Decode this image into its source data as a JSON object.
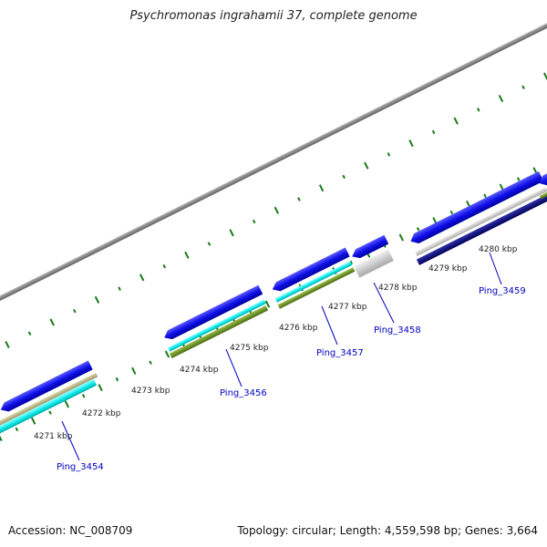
{
  "title": "Psychromonas ingrahamii 37, complete genome",
  "footer": {
    "accession": "Accession: NC_008709",
    "summary": "Topology: circular; Length: 4,559,598 bp; Genes: 3,664"
  },
  "ticks": [
    "4271 kbp",
    "4272 kbp",
    "4273 kbp",
    "4274 kbp",
    "4275 kbp",
    "4276 kbp",
    "4277 kbp",
    "4278 kbp",
    "4279 kbp",
    "4280 kbp"
  ],
  "genes": [
    "Ping_3454",
    "Ping_3456",
    "Ping_3457",
    "Ping_3458",
    "Ping_3459"
  ],
  "colors": {
    "backbone": "#808080",
    "gene": "#1010e8",
    "gene_dark": "#00007a",
    "track_cyan": "#00e6e6",
    "track_khaki": "#b8b078",
    "track_olive": "#6b8e23",
    "track_gray": "#c8c8c8",
    "tick": "#1a7a1a",
    "label": "#0000c0"
  }
}
